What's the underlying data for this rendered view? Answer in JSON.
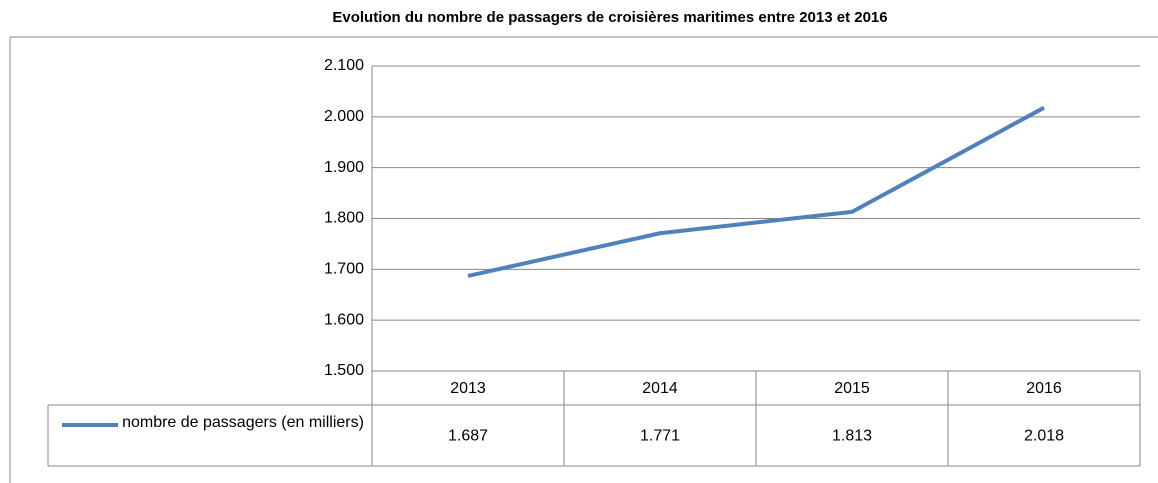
{
  "chart_data": {
    "type": "line",
    "title": "Evolution du nombre de passagers de croisières maritimes entre 2013 et 2016",
    "categories": [
      "2013",
      "2014",
      "2015",
      "2016"
    ],
    "series": [
      {
        "name": "nombre de passagers (en milliers)",
        "color": "#4f81bd",
        "values": [
          1687,
          1771,
          1813,
          2018
        ],
        "value_labels": [
          "1.687",
          "1.771",
          "1.813",
          "2.018"
        ]
      }
    ],
    "ylim": [
      1500,
      2100
    ],
    "yticks": [
      {
        "value": 1500,
        "label": "1.500"
      },
      {
        "value": 1600,
        "label": "1.600"
      },
      {
        "value": 1700,
        "label": "1.700"
      },
      {
        "value": 1800,
        "label": "1.800"
      },
      {
        "value": 1900,
        "label": "1.900"
      },
      {
        "value": 2000,
        "label": "2.000"
      },
      {
        "value": 2100,
        "label": "2.100"
      }
    ],
    "grid": true
  }
}
